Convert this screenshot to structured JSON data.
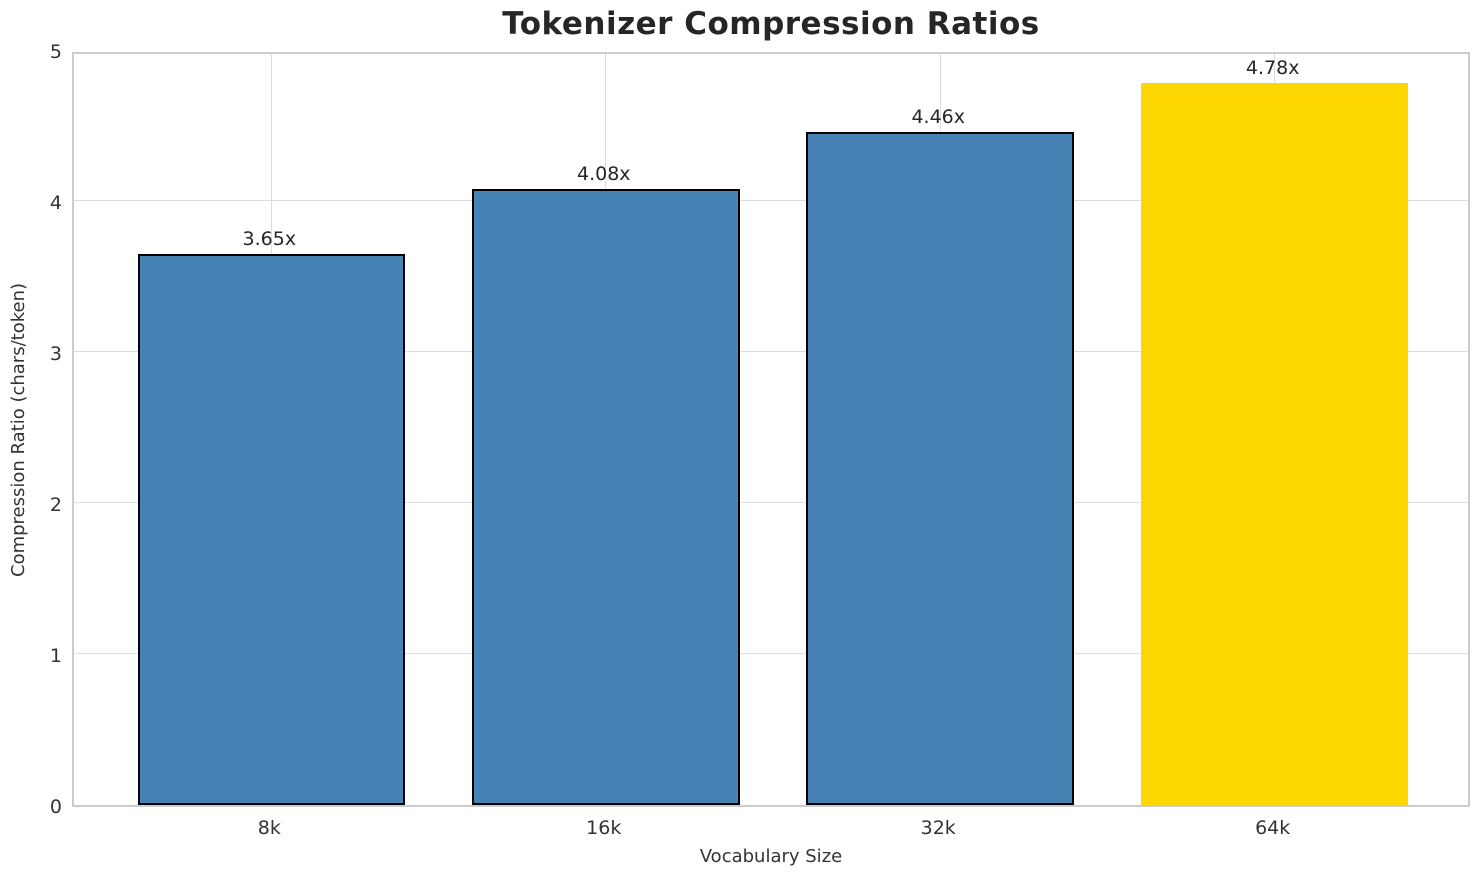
{
  "chart_data": {
    "type": "bar",
    "title": "Tokenizer Compression Ratios",
    "xlabel": "Vocabulary Size",
    "ylabel": "Compression Ratio (chars/token)",
    "categories": [
      "8k",
      "16k",
      "32k",
      "64k"
    ],
    "values": [
      3.65,
      4.08,
      4.46,
      4.78
    ],
    "bar_labels": [
      "3.65x",
      "4.08x",
      "4.46x",
      "4.78x"
    ],
    "bar_colors": [
      "#4682B4",
      "#4682B4",
      "#4682B4",
      "#FFD700"
    ],
    "bar_edge_colors": [
      "#000000",
      "#000000",
      "#000000",
      "none"
    ],
    "accent_color": "#4682B4",
    "highlight_color": "#FFD700",
    "ylim": [
      0,
      5
    ],
    "yticks": [
      "0",
      "1",
      "2",
      "3",
      "4",
      "5"
    ],
    "grid": "on",
    "legend": "none"
  }
}
